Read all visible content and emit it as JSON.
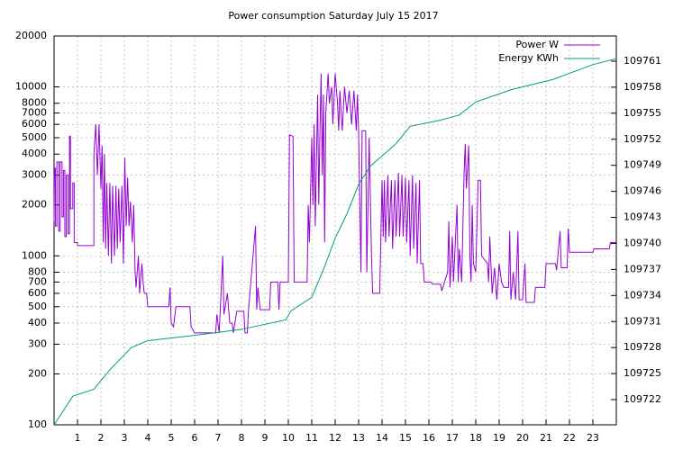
{
  "chart_data": {
    "type": "line",
    "title": "Power consumption Saturday July 15 2017",
    "xlim": [
      0,
      24
    ],
    "xticks": [
      1,
      2,
      3,
      4,
      5,
      6,
      7,
      8,
      9,
      10,
      11,
      12,
      13,
      14,
      15,
      16,
      17,
      18,
      19,
      20,
      21,
      22,
      23
    ],
    "ylim": [
      100,
      20000
    ],
    "log_y": true,
    "yticks": [
      100,
      200,
      300,
      400,
      500,
      600,
      700,
      800,
      1000,
      2000,
      3000,
      4000,
      5000,
      6000,
      7000,
      8000,
      10000,
      20000
    ],
    "y2lim": [
      109719.1,
      109763.9
    ],
    "y2ticks": [
      109722,
      109725,
      109728,
      109731,
      109734,
      109737,
      109740,
      109743,
      109746,
      109749,
      109752,
      109755,
      109758,
      109761
    ],
    "grid": true,
    "legend": "top-right",
    "series": [
      {
        "name": "Power W",
        "color": "#9400d3",
        "x": [
          0.0,
          0.02,
          0.06,
          0.06,
          0.12,
          0.12,
          0.2,
          0.2,
          0.26,
          0.26,
          0.34,
          0.34,
          0.4,
          0.4,
          0.46,
          0.46,
          0.52,
          0.52,
          0.6,
          0.6,
          0.66,
          0.66,
          0.7,
          0.7,
          0.8,
          0.8,
          0.86,
          0.86,
          1.0,
          1.0,
          1.7,
          1.7,
          1.78,
          1.85,
          1.92,
          2.0,
          2.05,
          2.1,
          2.15,
          2.2,
          2.25,
          2.32,
          2.38,
          2.45,
          2.5,
          2.58,
          2.64,
          2.7,
          2.76,
          2.82,
          2.9,
          2.96,
          3.02,
          3.08,
          3.14,
          3.2,
          3.26,
          3.34,
          3.4,
          3.46,
          3.5,
          3.6,
          3.65,
          3.75,
          3.8,
          3.85,
          3.95,
          4.0,
          4.9,
          4.95,
          5.0,
          5.1,
          5.2,
          5.8,
          5.85,
          6.0,
          6.9,
          6.95,
          7.05,
          7.1,
          7.2,
          7.25,
          7.4,
          7.5,
          7.6,
          7.65,
          7.8,
          8.1,
          8.15,
          8.25,
          8.3,
          8.6,
          8.65,
          8.7,
          8.8,
          9.2,
          9.25,
          9.55,
          9.6,
          9.65,
          10.0,
          10.05,
          10.2,
          10.25,
          10.8,
          10.85,
          10.9,
          11.0,
          11.05,
          11.1,
          11.15,
          11.25,
          11.3,
          11.35,
          11.4,
          11.45,
          11.5,
          11.55,
          11.6,
          11.7,
          11.75,
          11.85,
          11.9,
          12.0,
          12.1,
          12.15,
          12.2,
          12.3,
          12.4,
          12.5,
          12.6,
          12.7,
          12.8,
          12.9,
          12.95,
          13.0,
          13.1,
          13.15,
          13.3,
          13.35,
          13.45,
          13.55,
          13.6,
          13.9,
          14.0,
          14.05,
          14.1,
          14.15,
          14.25,
          14.3,
          14.4,
          14.45,
          14.55,
          14.6,
          14.7,
          14.75,
          14.85,
          14.9,
          15.0,
          15.05,
          15.15,
          15.2,
          15.3,
          15.35,
          15.45,
          15.5,
          15.6,
          15.65,
          15.75,
          15.8,
          16.1,
          16.15,
          16.5,
          16.55,
          16.8,
          16.85,
          16.9,
          17.0,
          17.05,
          17.2,
          17.25,
          17.3,
          17.4,
          17.5,
          17.55,
          17.6,
          17.7,
          17.75,
          17.8,
          17.85,
          17.9,
          18.0,
          18.1,
          18.2,
          18.25,
          18.5,
          18.55,
          18.6,
          18.7,
          18.8,
          18.9,
          19.0,
          19.1,
          19.2,
          19.4,
          19.45,
          19.5,
          19.6,
          19.7,
          19.8,
          19.85,
          20.0,
          20.1,
          20.15,
          20.5,
          20.55,
          20.95,
          21.0,
          21.4,
          21.45,
          21.6,
          21.65,
          21.9,
          21.95,
          22.0,
          23.0,
          23.05,
          23.7,
          23.75,
          24.0
        ],
        "values": [
          1600,
          3300,
          3300,
          1500,
          1500,
          3600,
          3600,
          1400,
          1400,
          3600,
          3600,
          1700,
          1700,
          3200,
          3200,
          1300,
          1300,
          3000,
          3000,
          1350,
          1350,
          5100,
          5100,
          1900,
          1900,
          2700,
          2700,
          1200,
          1200,
          1150,
          1150,
          4000,
          6000,
          3000,
          6000,
          2500,
          4500,
          1200,
          4000,
          1100,
          2700,
          1000,
          2700,
          900,
          2600,
          1000,
          2600,
          1100,
          2500,
          1200,
          2600,
          900,
          3800,
          1500,
          2900,
          1500,
          2100,
          1200,
          2000,
          800,
          650,
          1000,
          600,
          900,
          700,
          600,
          600,
          500,
          500,
          650,
          400,
          380,
          500,
          500,
          380,
          350,
          350,
          450,
          350,
          500,
          1000,
          450,
          600,
          400,
          400,
          350,
          470,
          470,
          350,
          350,
          480,
          1500,
          480,
          650,
          480,
          480,
          700,
          700,
          480,
          700,
          700,
          5200,
          5100,
          700,
          700,
          2000,
          1200,
          5000,
          2000,
          6000,
          1500,
          9000,
          2000,
          5500,
          12000,
          3000,
          9000,
          1200,
          7000,
          12000,
          8000,
          10000,
          6000,
          12000,
          8000,
          5500,
          9500,
          5500,
          10000,
          7000,
          9500,
          6000,
          9500,
          5500,
          9000,
          5500,
          800,
          5500,
          5500,
          800,
          5000,
          1000,
          600,
          600,
          2800,
          1300,
          2800,
          1200,
          3000,
          1300,
          2800,
          1100,
          2800,
          1300,
          3100,
          1300,
          3000,
          1300,
          2900,
          1200,
          2800,
          1000,
          3000,
          1100,
          2700,
          900,
          2800,
          900,
          900,
          700,
          700,
          680,
          680,
          620,
          800,
          1600,
          650,
          1300,
          700,
          2000,
          700,
          1100,
          700,
          3000,
          4600,
          2500,
          4500,
          1000,
          700,
          2000,
          900,
          800,
          2800,
          2800,
          1000,
          900,
          700,
          1300,
          600,
          850,
          550,
          900,
          700,
          650,
          650,
          1400,
          550,
          800,
          550,
          1400,
          550,
          550,
          900,
          530,
          530,
          650,
          650,
          900,
          900,
          820,
          1400,
          850,
          850,
          1450,
          1050,
          1050,
          1100,
          1100,
          1200,
          1200
        ]
      },
      {
        "name": "Energy KWh",
        "color": "#009e73",
        "axis": "y2",
        "x": [
          0,
          0.8,
          1.7,
          2.4,
          3.3,
          4,
          6,
          8,
          9.9,
          10.1,
          11,
          11.5,
          12,
          12.5,
          13,
          13.5,
          14.6,
          15.2,
          16.5,
          17.3,
          18,
          19.5,
          21.3,
          22,
          23,
          24
        ],
        "values": [
          109719.1,
          109722.4,
          109723.2,
          109725.5,
          109728,
          109728.8,
          109729.4,
          109730.1,
          109731.2,
          109732.2,
          109733.8,
          109737,
          109740.6,
          109743.4,
          109746.8,
          109748.9,
          109751.5,
          109753.5,
          109754.2,
          109754.8,
          109756.3,
          109757.7,
          109758.9,
          109759.6,
          109760.6,
          109761.3
        ]
      }
    ]
  }
}
